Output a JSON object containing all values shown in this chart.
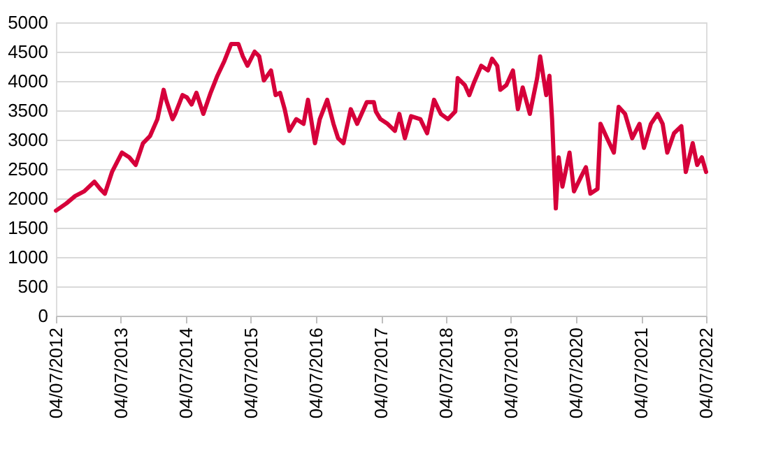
{
  "chart_data": {
    "type": "line",
    "x": [
      "2012-07-04",
      "2012-09-01",
      "2012-10-20",
      "2012-12-10",
      "2013-02-05",
      "2013-03-10",
      "2013-04-05",
      "2013-05-15",
      "2013-07-10",
      "2013-08-20",
      "2013-09-25",
      "2013-11-05",
      "2013-12-15",
      "2014-01-25",
      "2014-03-01",
      "2014-03-15",
      "2014-04-20",
      "2014-05-05",
      "2014-06-15",
      "2014-07-10",
      "2014-08-05",
      "2014-09-01",
      "2014-10-10",
      "2014-11-20",
      "2014-12-28",
      "2015-02-05",
      "2015-03-15",
      "2015-04-25",
      "2015-05-20",
      "2015-06-15",
      "2015-07-25",
      "2015-08-20",
      "2015-09-15",
      "2015-10-25",
      "2015-11-20",
      "2015-12-15",
      "2016-01-10",
      "2016-02-05",
      "2016-03-15",
      "2016-04-25",
      "2016-05-20",
      "2016-06-28",
      "2016-07-25",
      "2016-09-05",
      "2016-10-10",
      "2016-11-05",
      "2016-12-05",
      "2017-01-15",
      "2017-02-20",
      "2017-04-15",
      "2017-05-25",
      "2017-06-05",
      "2017-07-01",
      "2017-08-10",
      "2017-09-20",
      "2017-10-15",
      "2017-11-15",
      "2017-12-20",
      "2018-02-10",
      "2018-03-20",
      "2018-04-28",
      "2018-06-05",
      "2018-07-15",
      "2018-08-25",
      "2018-09-08",
      "2018-10-18",
      "2018-11-12",
      "2018-12-08",
      "2019-01-18",
      "2019-02-25",
      "2019-03-20",
      "2019-04-18",
      "2019-05-05",
      "2019-06-08",
      "2019-07-15",
      "2019-08-12",
      "2019-09-08",
      "2019-10-18",
      "2019-11-28",
      "2019-12-15",
      "2020-01-18",
      "2020-02-05",
      "2020-02-20",
      "2020-03-12",
      "2020-03-28",
      "2020-04-18",
      "2020-05-28",
      "2020-06-22",
      "2020-08-01",
      "2020-08-28",
      "2020-09-22",
      "2020-11-01",
      "2020-11-18",
      "2020-12-25",
      "2021-02-01",
      "2021-02-28",
      "2021-04-05",
      "2021-05-15",
      "2021-06-25",
      "2021-07-20",
      "2021-08-28",
      "2021-10-05",
      "2021-11-02",
      "2021-11-28",
      "2022-01-05",
      "2022-02-15",
      "2022-03-12",
      "2022-04-20",
      "2022-05-15",
      "2022-06-10",
      "2022-07-04"
    ],
    "series": [
      {
        "color": "#d6003a",
        "values": [
          1790,
          1915,
          2040,
          2120,
          2285,
          2160,
          2080,
          2450,
          2780,
          2700,
          2570,
          2940,
          3065,
          3350,
          3850,
          3680,
          3350,
          3440,
          3760,
          3720,
          3600,
          3800,
          3440,
          3800,
          4090,
          4340,
          4630,
          4630,
          4420,
          4260,
          4500,
          4420,
          4010,
          4180,
          3760,
          3800,
          3520,
          3150,
          3350,
          3270,
          3680,
          2940,
          3350,
          3680,
          3270,
          3025,
          2940,
          3520,
          3270,
          3640,
          3640,
          3480,
          3350,
          3270,
          3150,
          3440,
          3025,
          3400,
          3350,
          3110,
          3680,
          3440,
          3350,
          3480,
          4050,
          3930,
          3760,
          3970,
          4260,
          4180,
          4380,
          4260,
          3850,
          3930,
          4180,
          3520,
          3890,
          3440,
          4050,
          4420,
          3760,
          4090,
          3350,
          1830,
          2700,
          2200,
          2780,
          2120,
          2370,
          2530,
          2080,
          2160,
          3270,
          3025,
          2780,
          3560,
          3440,
          3025,
          3270,
          2860,
          3270,
          3440,
          3270,
          2780,
          3110,
          3230,
          2450,
          2940,
          2570,
          2700,
          2450
        ]
      }
    ],
    "xlim": [
      "2012-07-04",
      "2022-07-04"
    ],
    "xticks": [
      {
        "value": "2012-07-04",
        "label": "04/07/2012"
      },
      {
        "value": "2013-07-04",
        "label": "04/07/2013"
      },
      {
        "value": "2014-07-04",
        "label": "04/07/2014"
      },
      {
        "value": "2015-07-04",
        "label": "04/07/2015"
      },
      {
        "value": "2016-07-04",
        "label": "04/07/2016"
      },
      {
        "value": "2017-07-04",
        "label": "04/07/2017"
      },
      {
        "value": "2018-07-04",
        "label": "04/07/2018"
      },
      {
        "value": "2019-07-04",
        "label": "04/07/2019"
      },
      {
        "value": "2020-07-04",
        "label": "04/07/2020"
      },
      {
        "value": "2021-07-04",
        "label": "04/07/2021"
      },
      {
        "value": "2022-07-04",
        "label": "04/07/2022"
      }
    ],
    "ylim": [
      0,
      5000
    ],
    "yticks": [
      0,
      500,
      1000,
      1500,
      2000,
      2500,
      3000,
      3500,
      4000,
      4500,
      5000
    ],
    "grid": "y",
    "marker": "none",
    "line_style": "solid"
  }
}
